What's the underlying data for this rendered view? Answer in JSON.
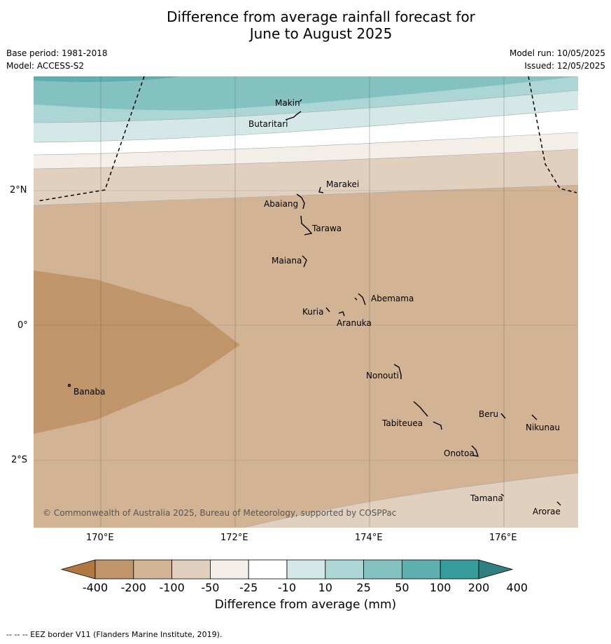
{
  "title_line1": "Difference from average rainfall forecast for",
  "title_line2": "June to August 2025",
  "meta_left": [
    "Base period: 1981-2018",
    "Model: ACCESS-S2"
  ],
  "meta_right": [
    "Model run: 10/05/2025",
    "Issued: 12/05/2025"
  ],
  "lat_labels": [
    "2°N",
    "0°",
    "2°S"
  ],
  "lon_labels": [
    "170°E",
    "172°E",
    "174°E",
    "176°E"
  ],
  "islands": [
    {
      "name": "Makin"
    },
    {
      "name": "Butaritari"
    },
    {
      "name": "Marakei"
    },
    {
      "name": "Abaiang"
    },
    {
      "name": "Tarawa"
    },
    {
      "name": "Maiana"
    },
    {
      "name": "Abemama"
    },
    {
      "name": "Kuria"
    },
    {
      "name": "Aranuka"
    },
    {
      "name": "Banaba"
    },
    {
      "name": "Nonouti"
    },
    {
      "name": "Beru"
    },
    {
      "name": "Tabiteuea"
    },
    {
      "name": "Nikunau"
    },
    {
      "name": "Onotoa"
    },
    {
      "name": "Tamana"
    },
    {
      "name": "Arorae"
    }
  ],
  "copyright": "© Commonwealth of Australia 2025, Bureau of Meteorology, supported by COSPPac",
  "colorbar": {
    "ticks": [
      "-400",
      "-200",
      "-100",
      "-50",
      "-25",
      "-10",
      "10",
      "25",
      "50",
      "100",
      "200",
      "400"
    ],
    "colors": [
      "#b07840",
      "#c0956a",
      "#d2b393",
      "#e2d0bf",
      "#f3eee8",
      "#ffffff",
      "#d3e8e7",
      "#acd5d5",
      "#84c2c2",
      "#5eafaf",
      "#369c9c",
      "#2f7f7f"
    ],
    "label": "Difference from average (mm)"
  },
  "footnote": "--  --  -- EEZ border V11 (Flanders Marine Institute, 2019)."
}
